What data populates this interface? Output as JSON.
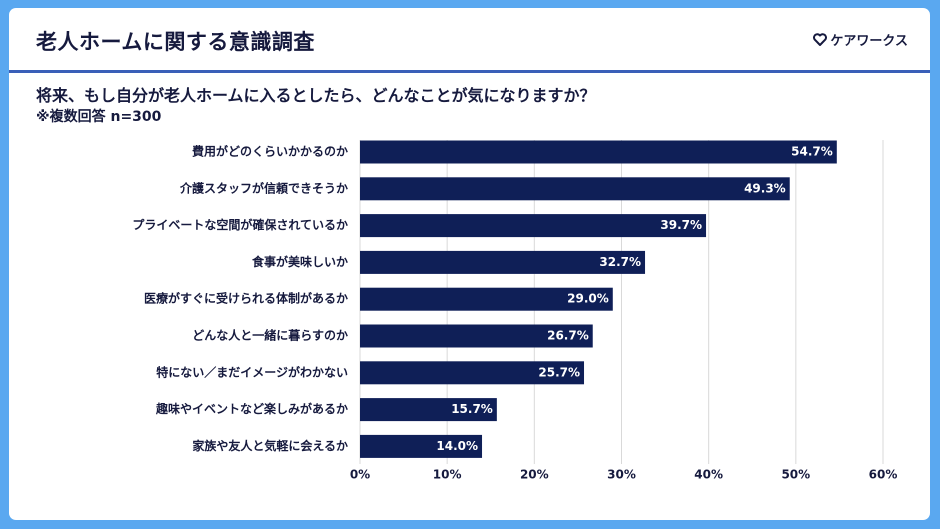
{
  "header": {
    "title": "老人ホームに関する意識調査",
    "logo_text": "ケアワークス",
    "logo_icon": "heart-icon"
  },
  "survey": {
    "question": "将来、もし自分が老人ホームに入るとしたら、どんなことが気になりますか？",
    "note": "※複数回答 n=300"
  },
  "colors": {
    "background": "#5aa8f0",
    "bar": "#0f1f57",
    "divider": "#3a5fb8",
    "text": "#161a3e"
  },
  "chart_data": {
    "type": "bar",
    "orientation": "horizontal",
    "categories": [
      "費用がどのくらいかかるのか",
      "介護スタッフが信頼できそうか",
      "プライベートな空間が確保されているか",
      "食事が美味しいか",
      "医療がすぐに受けられる体制があるか",
      "どんな人と一緒に暮らすのか",
      "特にない／まだイメージがわかない",
      "趣味やイベントなど楽しみがあるか",
      "家族や友人と気軽に会えるか"
    ],
    "values": [
      54.7,
      49.3,
      39.7,
      32.7,
      29.0,
      26.7,
      25.7,
      15.7,
      14.0
    ],
    "value_labels": [
      "54.7%",
      "49.3%",
      "39.7%",
      "32.7%",
      "29.0%",
      "26.7%",
      "25.7%",
      "15.7%",
      "14.0%"
    ],
    "xlim": [
      0,
      60
    ],
    "ticks": [
      0,
      10,
      20,
      30,
      40,
      50,
      60
    ],
    "tick_labels": [
      "0%",
      "10%",
      "20%",
      "30%",
      "40%",
      "50%",
      "60%"
    ],
    "grid": true,
    "legend": false
  }
}
